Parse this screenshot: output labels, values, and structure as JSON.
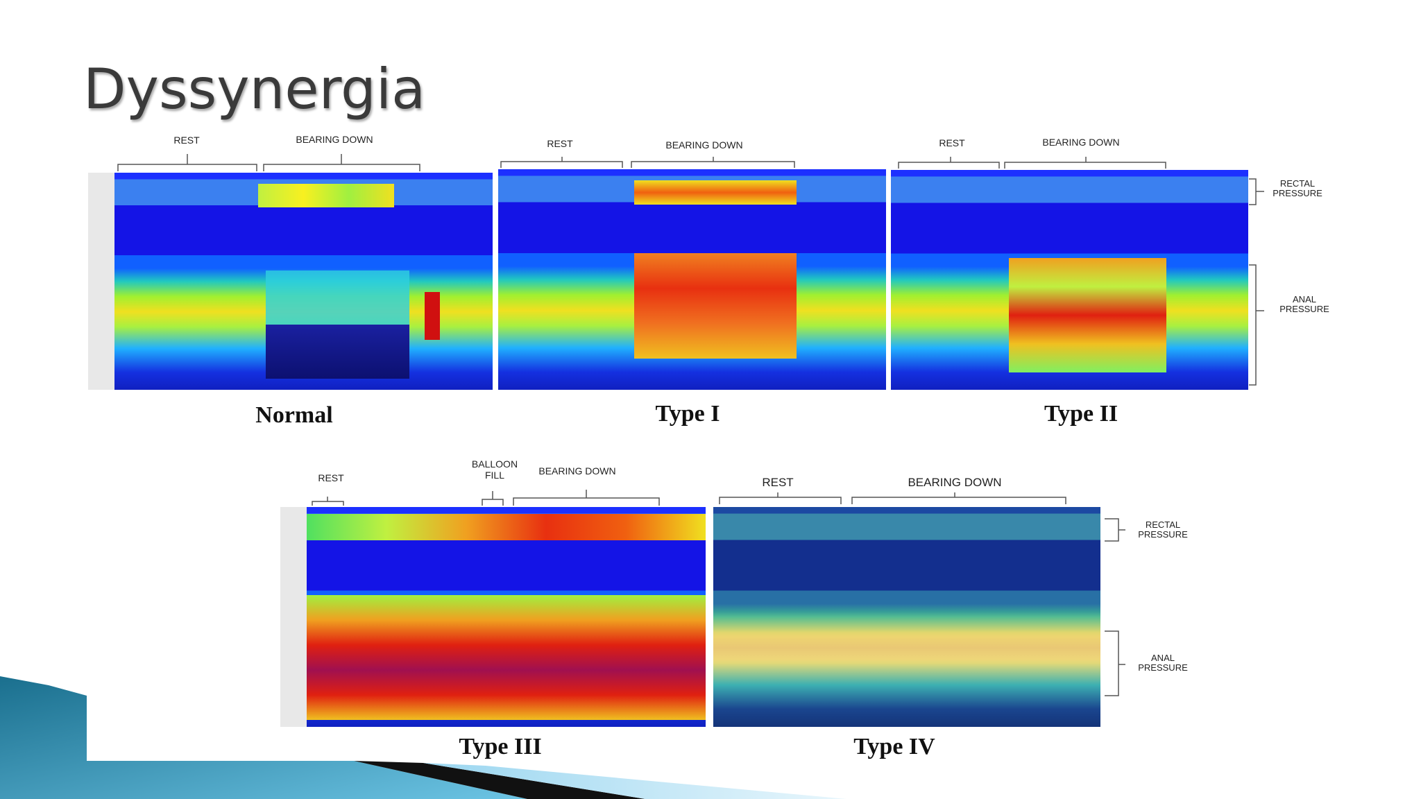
{
  "title": "Dyssynergia",
  "panels": [
    {
      "caption": "Normal",
      "phases": [
        "REST",
        "BEARING DOWN"
      ]
    },
    {
      "caption": "Type I",
      "phases": [
        "REST",
        "BEARING DOWN"
      ]
    },
    {
      "caption": "Type II",
      "phases": [
        "REST",
        "BEARING DOWN"
      ]
    },
    {
      "caption": "Type III",
      "phases": [
        "REST",
        "BALLOON FILL",
        "BEARING DOWN"
      ]
    },
    {
      "caption": "Type IV",
      "phases": [
        "REST",
        "BEARING DOWN"
      ]
    }
  ],
  "side_labels": [
    {
      "rectal": "RECTAL PRESSURE",
      "anal": "ANAL PRESSURE"
    },
    {
      "rectal": "RECTAL PRESSURE",
      "anal": "ANAL PRESSURE"
    }
  ]
}
